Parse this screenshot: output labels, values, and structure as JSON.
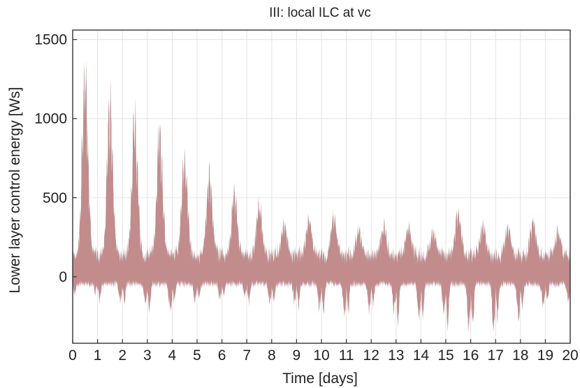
{
  "chart_data": {
    "type": "line",
    "title": "III: local ILC at vc",
    "xlabel": "Time [days]",
    "ylabel": "Lower layer control energy [Ws]",
    "xlim": [
      0,
      20
    ],
    "ylim": [
      -420,
      1560
    ],
    "xticks": [
      0,
      1,
      2,
      3,
      4,
      5,
      6,
      7,
      8,
      9,
      10,
      11,
      12,
      13,
      14,
      15,
      16,
      17,
      18,
      19,
      20
    ],
    "yticks": [
      0,
      500,
      1000,
      1500
    ],
    "grid": true,
    "series_colors": [
      "#c48b8b",
      "#8d8fd0",
      "#7fbf8c",
      "#5aa28a",
      "#d2a24a",
      "#b07fc0"
    ],
    "envelope_daily": {
      "x_day_peak": [
        0.5,
        1.5,
        2.5,
        3.5,
        4.5,
        5.5,
        6.5,
        7.5,
        8.5,
        9.5,
        10.5,
        11.5,
        12.5,
        13.5,
        14.5,
        15.5,
        16.5,
        17.5,
        18.5,
        19.5
      ],
      "upper_peak": [
        1520,
        1270,
        1190,
        1090,
        890,
        760,
        610,
        510,
        340,
        390,
        410,
        300,
        330,
        330,
        300,
        460,
        340,
        330,
        380,
        300
      ],
      "lower_min": [
        -100,
        -160,
        -170,
        -260,
        -160,
        -140,
        -120,
        -180,
        -170,
        -200,
        -250,
        -230,
        -220,
        -300,
        -260,
        -380,
        -370,
        -300,
        -200,
        -170
      ]
    }
  }
}
